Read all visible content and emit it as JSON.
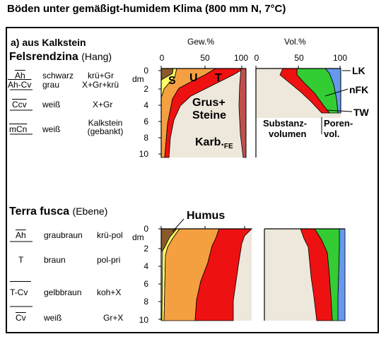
{
  "title": "Böden unter gemäßigt-humidem Klima (800 mm N, 7°C)",
  "subtitle": "a) aus Kalkstein",
  "axes": {
    "gew_label": "Gew.%",
    "vol_label": "Vol.%",
    "gew_ticks": [
      "0",
      "50",
      "100"
    ],
    "vol_ticks": [
      "0",
      "50",
      "100"
    ],
    "depth_unit": "dm",
    "depth_ticks": [
      "0",
      "2",
      "4",
      "6",
      "8",
      "10"
    ]
  },
  "colors": {
    "humus": "#8B5A2B",
    "sand": "#FFFF66",
    "silt": "#F5A040",
    "clay": "#EE1111",
    "stone": "#EEE8DC",
    "carbonate": "#C0504D",
    "nfk": "#33CC33",
    "lk": "#6699EE"
  },
  "profiles": [
    {
      "name": "Felsrendzina",
      "position": "(Hang)",
      "horizons": [
        {
          "code": "Ah",
          "color": "schwarz",
          "structure": "krü+Gr"
        },
        {
          "code": "Ah-Cv",
          "color": "grau",
          "structure": "X+Gr+krü"
        },
        {
          "code": "Ccv",
          "color": "weiß",
          "structure": "X+Gr"
        },
        {
          "code": "mCn",
          "color": "weiß",
          "structure": "Kalkstein (gebankt)"
        }
      ]
    },
    {
      "name": "Terra fusca",
      "position": "(Ebene)",
      "horizons": [
        {
          "code": "Ah",
          "color": "graubraun",
          "structure": "krü-pol"
        },
        {
          "code": "T",
          "color": "braun",
          "structure": "pol-pri"
        },
        {
          "code": "T-Cv",
          "color": "gelbbraun",
          "structure": "koh+X"
        },
        {
          "code": "Cv",
          "color": "weiß",
          "structure": "Gr+X"
        }
      ]
    }
  ],
  "labels": {
    "s": "S",
    "u": "U",
    "t": "T",
    "grus_line1": "Grus+",
    "grus_line2": "Steine",
    "karb": "Karb.",
    "karb_sub": "FE",
    "lk": "LK",
    "nfk": "nFK",
    "tw": "TW",
    "substanz_line1": "Substanz-",
    "substanz_line2": "volumen",
    "poren_line1": "Poren-",
    "poren_line2": "vol.",
    "humus": "Humus"
  }
}
